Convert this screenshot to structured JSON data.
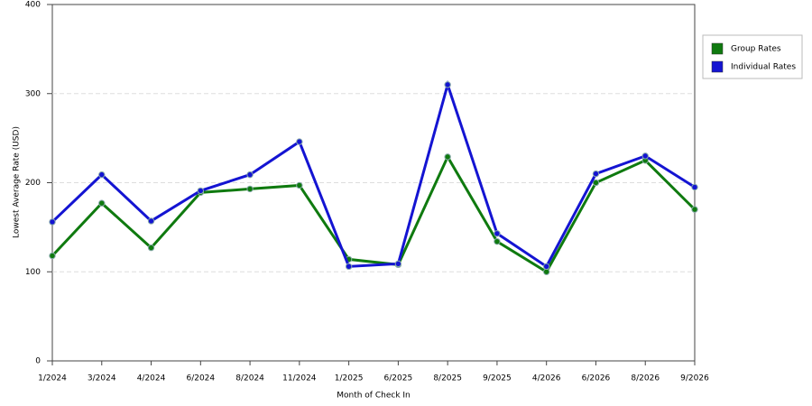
{
  "chart_data": {
    "type": "line",
    "x_label": "Month of Check In",
    "y_label": "Lowest Average Rate (USD)",
    "categories": [
      "1/2024",
      "3/2024",
      "4/2024",
      "6/2024",
      "8/2024",
      "11/2024",
      "1/2025",
      "6/2025",
      "8/2025",
      "9/2025",
      "4/2026",
      "6/2026",
      "8/2026",
      "9/2026"
    ],
    "series": [
      {
        "name": "Group Rates",
        "color": "#0f7a0f",
        "values": [
          118,
          177,
          127,
          189,
          193,
          197,
          114,
          108,
          229,
          134,
          100,
          200,
          225,
          170
        ]
      },
      {
        "name": "Individual Rates",
        "color": "#1414d2",
        "values": [
          156,
          209,
          157,
          191,
          209,
          246,
          106,
          109,
          310,
          143,
          106,
          210,
          230,
          195
        ]
      }
    ],
    "ylim": [
      0,
      400
    ],
    "yticks": [
      0,
      100,
      200,
      300,
      400
    ],
    "grid": true,
    "legend": "right"
  }
}
